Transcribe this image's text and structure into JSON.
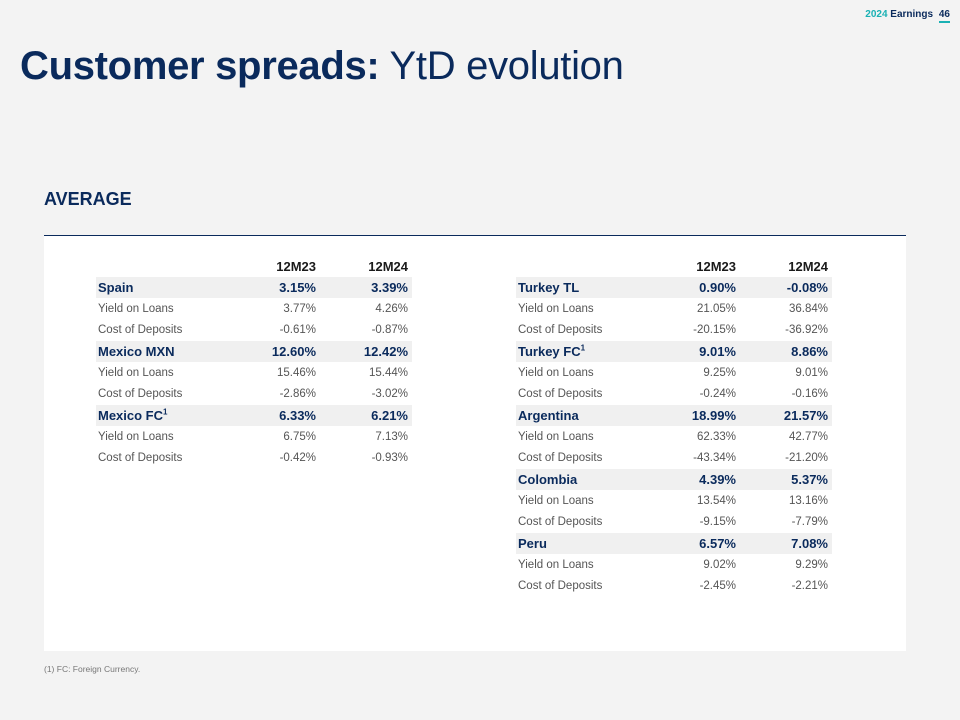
{
  "header": {
    "year": "2024",
    "label": "Earnings",
    "page": "46"
  },
  "title": {
    "bold": "Customer spreads:",
    "rest": "YtD evolution"
  },
  "section": "AVERAGE",
  "columns": [
    "12M23",
    "12M24"
  ],
  "left_table": [
    {
      "name": "Spain",
      "v1": "3.15%",
      "v2": "3.39%",
      "sup": ""
    },
    {
      "name": "Yield on Loans",
      "v1": "3.77%",
      "v2": "4.26%"
    },
    {
      "name": "Cost of Deposits",
      "v1": "-0.61%",
      "v2": "-0.87%"
    },
    {
      "name": "Mexico MXN",
      "v1": "12.60%",
      "v2": "12.42%",
      "sup": ""
    },
    {
      "name": "Yield on Loans",
      "v1": "15.46%",
      "v2": "15.44%"
    },
    {
      "name": "Cost of Deposits",
      "v1": "-2.86%",
      "v2": "-3.02%"
    },
    {
      "name": "Mexico FC",
      "v1": "6.33%",
      "v2": "6.21%",
      "sup": "1"
    },
    {
      "name": "Yield on Loans",
      "v1": "6.75%",
      "v2": "7.13%"
    },
    {
      "name": "Cost of Deposits",
      "v1": "-0.42%",
      "v2": "-0.93%"
    }
  ],
  "right_table": [
    {
      "name": "Turkey TL",
      "v1": "0.90%",
      "v2": "-0.08%",
      "sup": ""
    },
    {
      "name": "Yield on Loans",
      "v1": "21.05%",
      "v2": "36.84%"
    },
    {
      "name": "Cost of Deposits",
      "v1": "-20.15%",
      "v2": "-36.92%"
    },
    {
      "name": "Turkey FC",
      "v1": "9.01%",
      "v2": "8.86%",
      "sup": "1"
    },
    {
      "name": "Yield on Loans",
      "v1": "9.25%",
      "v2": "9.01%"
    },
    {
      "name": "Cost of Deposits",
      "v1": "-0.24%",
      "v2": "-0.16%"
    },
    {
      "name": "Argentina",
      "v1": "18.99%",
      "v2": "21.57%",
      "sup": ""
    },
    {
      "name": "Yield on Loans",
      "v1": "62.33%",
      "v2": "42.77%"
    },
    {
      "name": "Cost of Deposits",
      "v1": "-43.34%",
      "v2": "-21.20%"
    },
    {
      "name": "Colombia",
      "v1": "4.39%",
      "v2": "5.37%",
      "sup": ""
    },
    {
      "name": "Yield on Loans",
      "v1": "13.54%",
      "v2": "13.16%"
    },
    {
      "name": "Cost of Deposits",
      "v1": "-9.15%",
      "v2": "-7.79%"
    },
    {
      "name": "Peru",
      "v1": "6.57%",
      "v2": "7.08%",
      "sup": ""
    },
    {
      "name": "Yield on Loans",
      "v1": "9.02%",
      "v2": "9.29%"
    },
    {
      "name": "Cost of Deposits",
      "v1": "-2.45%",
      "v2": "-2.21%"
    }
  ],
  "footnote": "(1) FC: Foreign Currency."
}
